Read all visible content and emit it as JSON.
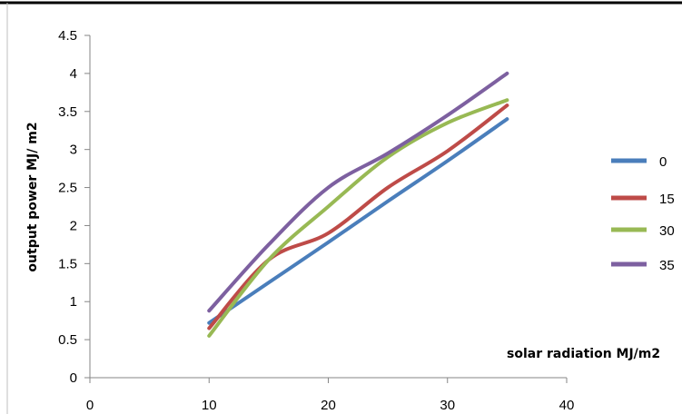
{
  "chart_data": {
    "type": "line",
    "xlabel": "solar radiation MJ/m2",
    "ylabel": "output power MJ/ m2",
    "xlim": [
      0,
      40
    ],
    "ylim": [
      0,
      4.5
    ],
    "xticks": [
      "0",
      "10",
      "20",
      "30",
      "40"
    ],
    "yticks": [
      "0",
      "0.5",
      "1",
      "1.5",
      "2",
      "2.5",
      "3",
      "3.5",
      "4",
      "4.5"
    ],
    "grid": false,
    "legend_position": "right",
    "x": [
      10,
      15,
      20,
      25,
      30,
      35
    ],
    "series": [
      {
        "name": "0",
        "color": "#4A7EBB",
        "values": [
          0.72,
          1.25,
          1.78,
          2.32,
          2.85,
          3.4
        ]
      },
      {
        "name": "15",
        "color": "#BE4B48",
        "values": [
          0.65,
          1.55,
          1.9,
          2.5,
          2.98,
          3.58
        ]
      },
      {
        "name": "30",
        "color": "#98B954",
        "values": [
          0.55,
          1.55,
          2.25,
          2.9,
          3.35,
          3.65
        ]
      },
      {
        "name": "35",
        "color": "#7D60A0",
        "values": [
          0.88,
          1.75,
          2.5,
          2.95,
          3.45,
          4.0
        ]
      }
    ]
  }
}
